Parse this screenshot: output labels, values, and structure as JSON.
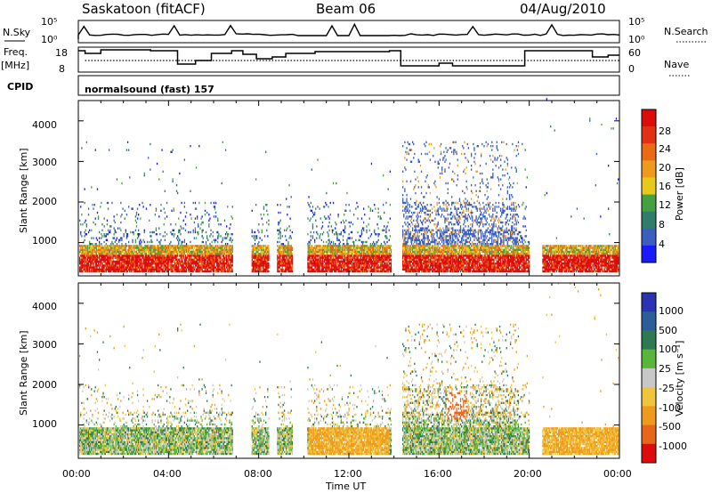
{
  "header": {
    "station": "Saskatoon (fitACF)",
    "beam": "Beam 06",
    "date": "04/Aug/2010"
  },
  "top_panel": {
    "nsky_label": "N.Sky",
    "nsearch_label": "N.Search",
    "nsky_ticks": [
      "10^5",
      "10^0"
    ],
    "freq_label_1": "Freq.",
    "freq_label_2": "[MHz]",
    "freq_ticks": [
      "18",
      "8"
    ],
    "nave_label": "Nave",
    "nave_ticks": [
      "60",
      "0"
    ],
    "cpid_label": "CPID",
    "cpid_value": "normalsound (fast)  157"
  },
  "chart_data": [
    {
      "type": "heatmap",
      "title": "",
      "ylabel": "Slant Range [km]",
      "ylim": [
        180,
        4500
      ],
      "yticks": [
        "1000",
        "2000",
        "3000",
        "4000"
      ],
      "colorbar_label": "Power [dB]",
      "colorbar_ticks": [
        "4",
        "8",
        "12",
        "16",
        "20",
        "24",
        "28"
      ],
      "colors": [
        "#1a1aff",
        "#3a5fc0",
        "#2f7d6a",
        "#44a040",
        "#e7c81b",
        "#ee9a1c",
        "#ea6a16",
        "#e23015",
        "#dd0c0c"
      ]
    },
    {
      "type": "heatmap",
      "title": "",
      "ylabel": "Slant Range [km]",
      "ylim": [
        180,
        4500
      ],
      "yticks": [
        "1000",
        "2000",
        "3000",
        "4000"
      ],
      "colorbar_label": "Velocity [m s^-1]",
      "colorbar_ticks": [
        "1000",
        "500",
        "100",
        "25",
        "-25",
        "-100",
        "-500",
        "-1000"
      ],
      "colors": [
        "#2a34b3",
        "#2b5f9a",
        "#2d7a52",
        "#58b73a",
        "#c8c8c8",
        "#f0c43b",
        "#ee9a1c",
        "#e8661a",
        "#dd0c0c"
      ]
    }
  ],
  "x_axis": {
    "label": "Time UT",
    "ticks": [
      "00:00",
      "04:00",
      "08:00",
      "12:00",
      "16:00",
      "20:00",
      "00:00"
    ]
  }
}
